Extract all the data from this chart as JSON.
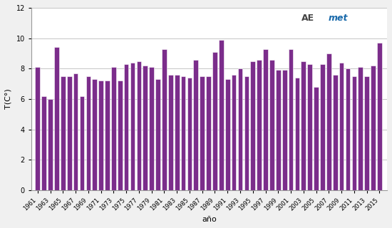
{
  "years": [
    1961,
    1962,
    1963,
    1964,
    1965,
    1966,
    1967,
    1968,
    1969,
    1970,
    1971,
    1972,
    1973,
    1974,
    1975,
    1976,
    1977,
    1978,
    1979,
    1980,
    1981,
    1982,
    1983,
    1984,
    1985,
    1986,
    1987,
    1988,
    1989,
    1990,
    1991,
    1992,
    1993,
    1994,
    1995,
    1996,
    1997,
    1998,
    1999,
    2000,
    2001,
    2002,
    2003,
    2004,
    2005,
    2006,
    2007,
    2008,
    2009,
    2010,
    2011,
    2012,
    2013,
    2014,
    2015
  ],
  "values": [
    8.1,
    6.2,
    6.0,
    9.4,
    7.5,
    7.5,
    7.7,
    6.2,
    7.5,
    7.3,
    7.2,
    7.2,
    8.1,
    7.2,
    8.3,
    8.4,
    8.5,
    8.2,
    8.1,
    7.3,
    9.3,
    7.6,
    7.6,
    7.5,
    7.4,
    8.6,
    7.5,
    7.5,
    9.1,
    9.9,
    7.3,
    7.6,
    8.0,
    7.5,
    8.5,
    8.6,
    9.3,
    8.6,
    7.9,
    7.9,
    9.3,
    7.4,
    8.5,
    8.3,
    6.8,
    8.3,
    9.0,
    7.6,
    8.4,
    8.0,
    7.5,
    8.1,
    7.5,
    8.2,
    9.7
  ],
  "bar_color": "#7B2D8B",
  "bar_edge_color": "white",
  "xlabel": "año",
  "ylabel": "T(C°)",
  "ylim": [
    0,
    12
  ],
  "yticks": [
    0,
    2,
    4,
    6,
    8,
    10,
    12
  ],
  "xtick_years": [
    1961,
    1963,
    1965,
    1967,
    1969,
    1971,
    1973,
    1975,
    1977,
    1979,
    1981,
    1983,
    1985,
    1987,
    1989,
    1991,
    1993,
    1995,
    1997,
    1999,
    2001,
    2003,
    2005,
    2007,
    2009,
    2011,
    2013,
    2015
  ],
  "fig_bg_color": "#F0F0F0",
  "plot_bg_color": "#FFFFFF",
  "grid_color": "#BBBBBB",
  "grid_linewidth": 0.6,
  "bar_width": 0.75
}
